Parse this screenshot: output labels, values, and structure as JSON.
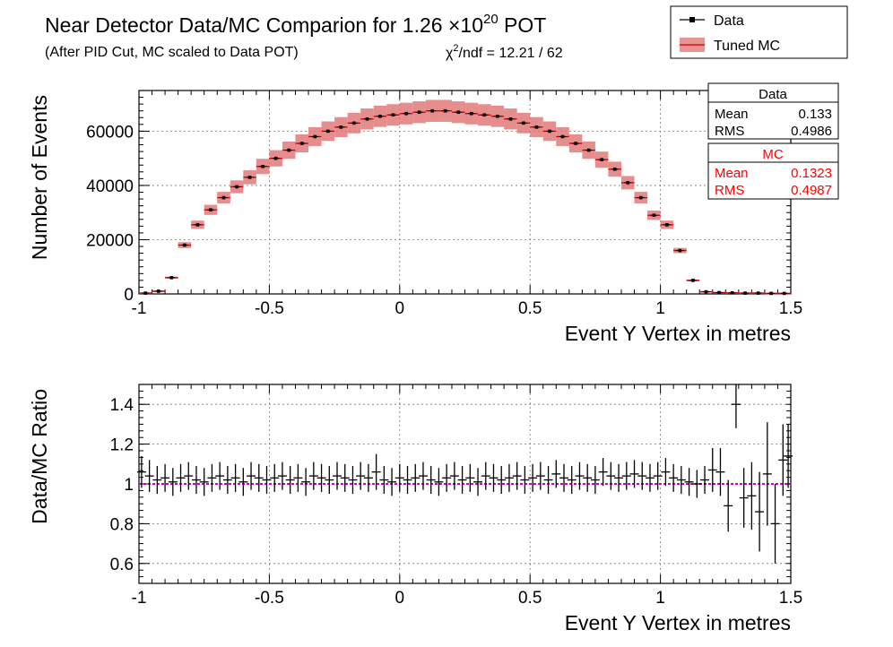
{
  "header": {
    "title_prefix": "Near Detector Data/MC Comparion for 1.26 ",
    "title_times": "×10",
    "title_exp": "20",
    "title_suffix": " POT",
    "subtitle": "(After PID Cut, MC scaled to Data POT)",
    "chi_prefix": "χ",
    "chi_exp": "2",
    "chi_rest": "/ndf = 12.21 / 62"
  },
  "legend": {
    "data_label": "Data",
    "mc_label": "Tuned MC"
  },
  "stats": {
    "data": {
      "title": "Data",
      "mean_label": "Mean",
      "mean": "0.133",
      "rms_label": "RMS",
      "rms": "0.4986"
    },
    "mc": {
      "title": "MC",
      "mean_label": "Mean",
      "mean": "0.1323",
      "rms_label": "RMS",
      "rms": "0.4987"
    }
  },
  "colors": {
    "data": "#000000",
    "mc_band": "#e07070",
    "mc_line": "#cc0000",
    "stats_mc_text": "#ff0000",
    "ratio_line": "#cc00cc"
  },
  "chart_data": [
    {
      "type": "bar",
      "xlabel": "Event Y Vertex in metres",
      "ylabel": "Number of Events",
      "xlim": [
        -1,
        1.5
      ],
      "ylim": [
        0,
        75000
      ],
      "xticks": [
        -1,
        -0.5,
        0,
        0.5,
        1,
        1.5
      ],
      "xtick_labels": [
        "-1",
        "-0.5",
        "0",
        "0.5",
        "1",
        "1.5"
      ],
      "yticks": [
        0,
        20000,
        40000,
        60000
      ],
      "ytick_labels": [
        "0",
        "20000",
        "40000",
        "60000"
      ],
      "grid": true,
      "x": [
        -0.975,
        -0.925,
        -0.875,
        -0.825,
        -0.775,
        -0.725,
        -0.675,
        -0.625,
        -0.575,
        -0.525,
        -0.475,
        -0.425,
        -0.375,
        -0.325,
        -0.275,
        -0.225,
        -0.175,
        -0.125,
        -0.075,
        -0.025,
        0.025,
        0.075,
        0.125,
        0.175,
        0.225,
        0.275,
        0.325,
        0.375,
        0.425,
        0.475,
        0.525,
        0.575,
        0.625,
        0.675,
        0.725,
        0.775,
        0.825,
        0.875,
        0.925,
        0.975,
        1.025,
        1.075,
        1.125,
        1.175,
        1.225,
        1.275,
        1.325,
        1.375,
        1.425,
        1.475
      ],
      "series": [
        {
          "name": "Data",
          "values": [
            300,
            1000,
            6000,
            18000,
            25500,
            31000,
            35500,
            39500,
            43000,
            47000,
            50000,
            53000,
            55500,
            58000,
            60000,
            61500,
            63000,
            64500,
            65500,
            66000,
            66500,
            67000,
            67500,
            67500,
            67000,
            66500,
            66000,
            65500,
            64500,
            63000,
            61500,
            60000,
            58000,
            55500,
            53000,
            49500,
            46000,
            41000,
            35500,
            29000,
            25500,
            16000,
            5000,
            800,
            500,
            400,
            300,
            300,
            200,
            200
          ]
        },
        {
          "name": "Tuned MC",
          "values": [
            300,
            1000,
            6000,
            18000,
            25500,
            31000,
            35500,
            39500,
            43000,
            47000,
            50000,
            53000,
            55500,
            58000,
            60000,
            61500,
            63000,
            64500,
            65500,
            66000,
            66500,
            67000,
            67500,
            67500,
            67000,
            66500,
            66000,
            65500,
            64500,
            63000,
            61500,
            60000,
            58000,
            55500,
            53000,
            49500,
            46000,
            41000,
            35500,
            29000,
            25500,
            16000,
            5000,
            800,
            500,
            400,
            300,
            300,
            200,
            200
          ]
        }
      ]
    },
    {
      "type": "scatter",
      "xlabel": "Event Y Vertex in metres",
      "ylabel": "Data/MC Ratio",
      "xlim": [
        -1,
        1.5
      ],
      "ylim": [
        0.5,
        1.5
      ],
      "xticks": [
        -1,
        -0.5,
        0,
        0.5,
        1,
        1.5
      ],
      "xtick_labels": [
        "-1",
        "-0.5",
        "0",
        "0.5",
        "1",
        "1.5"
      ],
      "yticks": [
        0.6,
        0.8,
        1,
        1.2,
        1.4
      ],
      "ytick_labels": [
        "0.6",
        "0.8",
        "1",
        "1.2",
        "1.4"
      ],
      "grid": true,
      "reference_line": 1,
      "x": [
        -0.99,
        -0.96,
        -0.93,
        -0.9,
        -0.87,
        -0.84,
        -0.81,
        -0.78,
        -0.75,
        -0.72,
        -0.69,
        -0.66,
        -0.63,
        -0.6,
        -0.57,
        -0.54,
        -0.51,
        -0.48,
        -0.45,
        -0.42,
        -0.39,
        -0.36,
        -0.33,
        -0.3,
        -0.27,
        -0.24,
        -0.21,
        -0.18,
        -0.15,
        -0.12,
        -0.09,
        -0.06,
        -0.03,
        0.0,
        0.03,
        0.06,
        0.09,
        0.12,
        0.15,
        0.18,
        0.21,
        0.24,
        0.27,
        0.3,
        0.33,
        0.36,
        0.39,
        0.42,
        0.45,
        0.48,
        0.51,
        0.54,
        0.57,
        0.6,
        0.63,
        0.66,
        0.69,
        0.72,
        0.75,
        0.78,
        0.81,
        0.84,
        0.87,
        0.9,
        0.93,
        0.96,
        0.99,
        1.02,
        1.05,
        1.08,
        1.11,
        1.14,
        1.17,
        1.2,
        1.23,
        1.26,
        1.29,
        1.32,
        1.35,
        1.38,
        1.41,
        1.44,
        1.47,
        1.49
      ],
      "values": [
        1.06,
        1.04,
        1.02,
        1.03,
        1.01,
        1.03,
        1.04,
        1.02,
        1.01,
        1.03,
        1.04,
        1.02,
        1.03,
        1.01,
        1.04,
        1.03,
        1.02,
        1.03,
        1.04,
        1.02,
        1.03,
        1.01,
        1.04,
        1.03,
        1.02,
        1.04,
        1.03,
        1.02,
        1.04,
        1.03,
        1.06,
        1.02,
        1.01,
        1.03,
        1.02,
        1.03,
        1.04,
        1.02,
        1.01,
        1.03,
        1.04,
        1.02,
        1.03,
        1.01,
        1.04,
        1.03,
        1.02,
        1.03,
        1.04,
        1.02,
        1.03,
        1.04,
        1.02,
        1.05,
        1.03,
        1.02,
        1.04,
        1.03,
        1.02,
        1.06,
        1.04,
        1.03,
        1.04,
        1.05,
        1.04,
        1.03,
        1.04,
        1.06,
        1.03,
        1.02,
        1.01,
        1.0,
        1.02,
        1.07,
        1.06,
        0.89,
        1.4,
        0.93,
        0.94,
        0.86,
        1.05,
        0.8,
        1.12,
        1.14
      ],
      "errors": [
        0.08,
        0.08,
        0.07,
        0.07,
        0.07,
        0.07,
        0.07,
        0.07,
        0.07,
        0.07,
        0.07,
        0.07,
        0.07,
        0.07,
        0.07,
        0.07,
        0.07,
        0.07,
        0.07,
        0.07,
        0.07,
        0.07,
        0.07,
        0.07,
        0.07,
        0.07,
        0.07,
        0.07,
        0.07,
        0.07,
        0.09,
        0.07,
        0.07,
        0.07,
        0.07,
        0.07,
        0.07,
        0.07,
        0.07,
        0.07,
        0.07,
        0.07,
        0.07,
        0.07,
        0.07,
        0.07,
        0.07,
        0.07,
        0.07,
        0.07,
        0.07,
        0.07,
        0.07,
        0.07,
        0.07,
        0.07,
        0.07,
        0.07,
        0.07,
        0.07,
        0.07,
        0.07,
        0.07,
        0.07,
        0.07,
        0.07,
        0.07,
        0.07,
        0.07,
        0.07,
        0.07,
        0.07,
        0.07,
        0.11,
        0.12,
        0.13,
        0.12,
        0.15,
        0.17,
        0.2,
        0.26,
        0.2,
        0.18,
        0.16
      ]
    }
  ]
}
